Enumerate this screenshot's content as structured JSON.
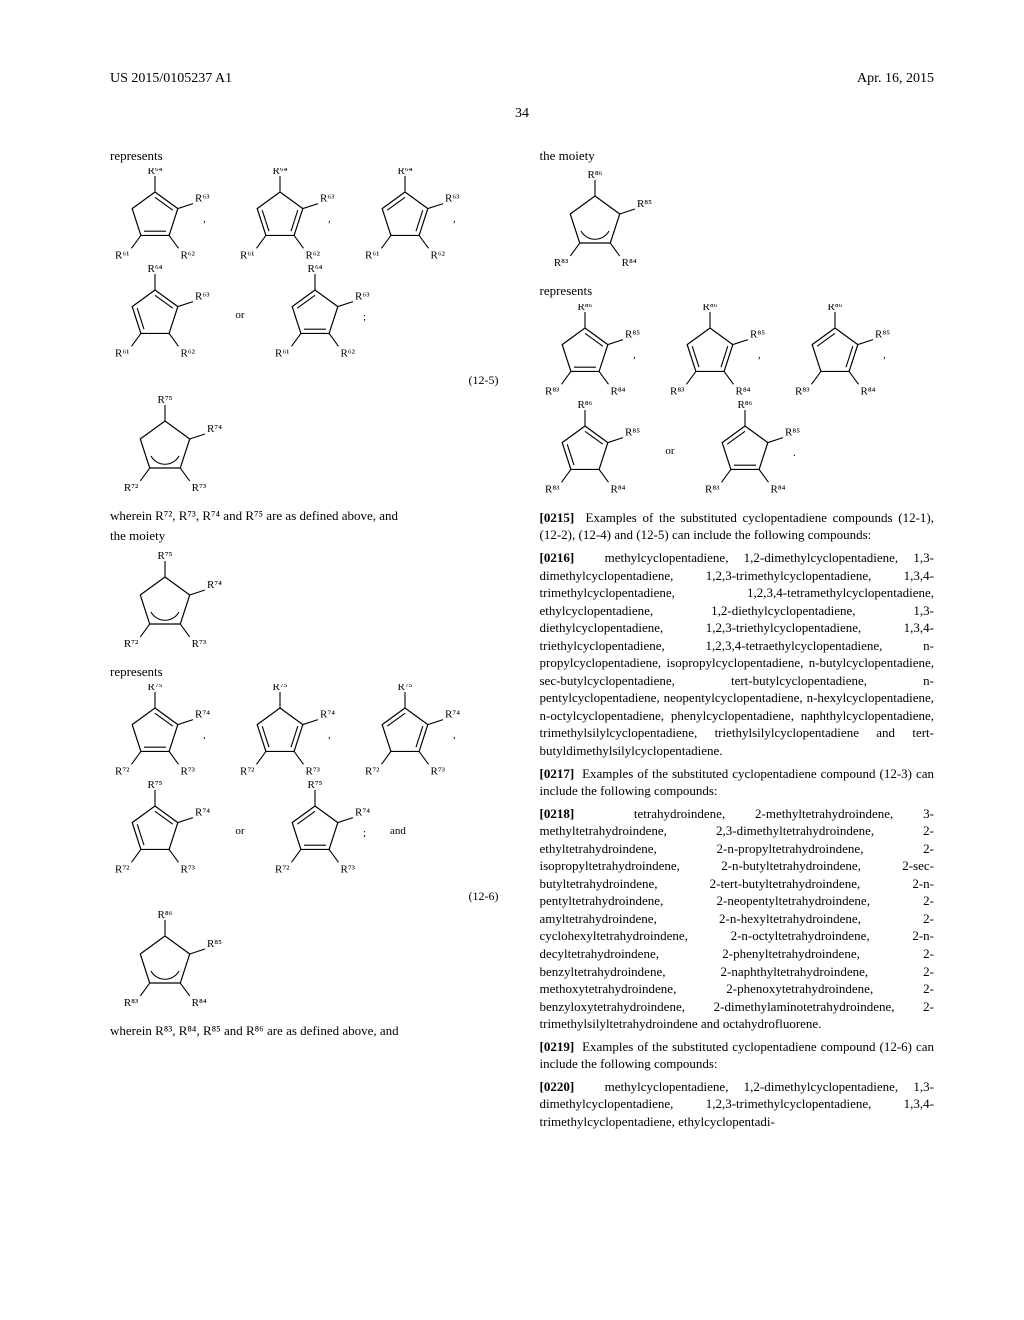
{
  "header": {
    "docnum": "US 2015/0105237 A1",
    "date": "Apr. 16, 2015",
    "page": "34"
  },
  "left": {
    "rep1": "represents",
    "f125_caption": "wherein R⁷², R⁷³, R⁷⁴ and R⁷⁵ are as defined above, and",
    "moiety": "the moiety",
    "formula125": "(12-5)",
    "rep2": "represents",
    "formula126": "(12-6)",
    "f126_caption": "wherein R⁸³, R⁸⁴, R⁸⁵ and R⁸⁶ are as defined above, and"
  },
  "right": {
    "moiety": "the moiety",
    "rep": "represents",
    "p0215_num": "[0215]",
    "p0215": "Examples of the substituted cyclopentadiene compounds (12-1), (12-2), (12-4) and (12-5) can include the following compounds:",
    "p0216_num": "[0216]",
    "p0216": "methylcyclopentadiene, 1,2-dimethylcyclopentadiene, 1,3-dimethylcyclopentadiene, 1,2,3-trimethylcyclopentadiene, 1,3,4-trimethylcyclopentadiene, 1,2,3,4-tetramethylcyclopentadiene, ethylcyclopentadiene, 1,2-diethylcyclopentadiene, 1,3-diethylcyclopentadiene, 1,2,3-triethylcyclopentadiene, 1,3,4-triethylcyclopentadiene, 1,2,3,4-tetraethylcyclopentadiene, n-propylcyclopentadiene, isopropylcyclopentadiene, n-butylcyclopentadiene, sec-butylcyclopentadiene, tert-butylcyclopentadiene, n-pentylcyclopentadiene, neopentylcyclopentadiene, n-hexylcyclopentadiene, n-octylcyclopentadiene, phenylcyclopentadiene, naphthylcyclopentadiene, trimethylsilylcyclopentadiene, triethylsilylcyclopentadiene and tert-butyldimethylsilylcyclopentadiene.",
    "p0217_num": "[0217]",
    "p0217": "Examples of the substituted cyclopentadiene compound (12-3) can include the following compounds:",
    "p0218_num": "[0218]",
    "p0218": "tetrahydroindene, 2-methyltetrahydroindene, 3-methyltetrahydroindene, 2,3-dimethyltetrahydroindene, 2-ethyltetrahydroindene, 2-n-propyltetrahydroindene, 2-isopropyltetrahydroindene, 2-n-butyltetrahydroindene, 2-sec-butyltetrahydroindene, 2-tert-butyltetrahydroindene, 2-n-pentyltetrahydroindene, 2-neopentyltetrahydroindene, 2-amyltetrahydroindene, 2-n-hexyltetrahydroindene, 2-cyclohexyltetrahydroindene, 2-n-octyltetrahydroindene, 2-n-decyltetrahydroindene, 2-phenyltetrahydroindene, 2-benzyltetrahydroindene, 2-naphthyltetrahydroindene, 2-methoxytetrahydroindene, 2-phenoxytetrahydroindene, 2-benzyloxytetrahydroindene, 2-dimethylaminotetrahydroindene, 2-trimethylsilyltetrahydroindene and octahydrofluorene.",
    "p0219_num": "[0219]",
    "p0219": "Examples of the substituted cyclopentadiene compound (12-6) can include the following compounds:",
    "p0220_num": "[0220]",
    "p0220": "methylcyclopentadiene, 1,2-dimethylcyclopentadiene, 1,3-dimethylcyclopentadiene, 1,2,3-trimethylcyclopentadiene, 1,3,4-trimethylcyclopentadiene, ethylcyclopentadi-"
  },
  "diagrams": {
    "r_labels_6164": [
      "R⁶¹",
      "R⁶²",
      "R⁶³",
      "R⁶⁴"
    ],
    "r_labels_7275": [
      "R⁷²",
      "R⁷³",
      "R⁷⁴",
      "R⁷⁵"
    ],
    "r_labels_8386": [
      "R⁸³",
      "R⁸⁴",
      "R⁸⁵",
      "R⁸⁶"
    ],
    "or": "or",
    "and": "and",
    "semi": ";",
    "comma": ",",
    "period": ".",
    "stroke": "#000000",
    "fill": "none",
    "font_size": 11
  }
}
